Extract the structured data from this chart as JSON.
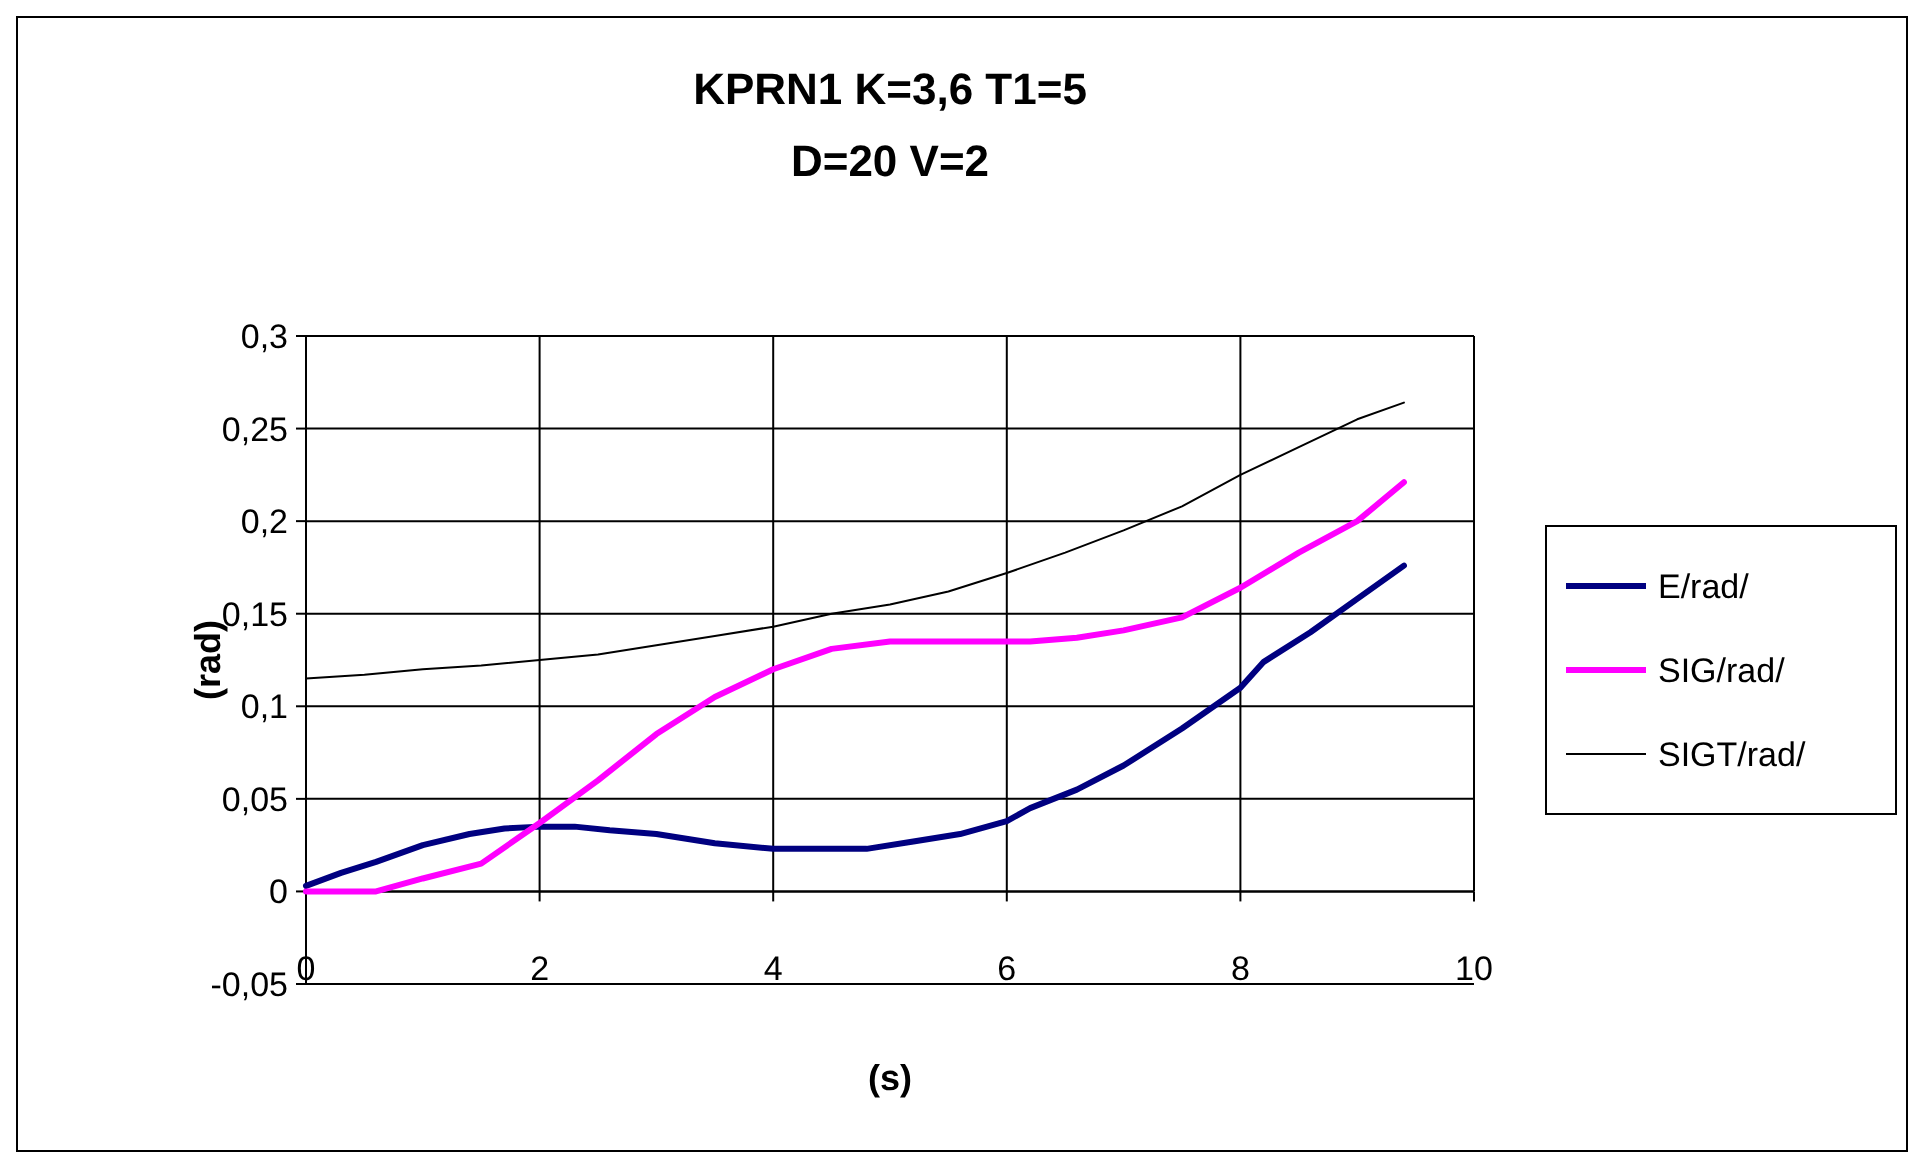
{
  "chart_data": {
    "type": "line",
    "title": "KPRN1 K=3,6 T1=5\nD=20 V=2",
    "xlabel": "(s)",
    "ylabel": "(rad)",
    "xlim": [
      0,
      10
    ],
    "xticks": [
      0,
      2,
      4,
      6,
      8,
      10
    ],
    "ylim": [
      -0.05,
      0.3
    ],
    "yticks": [
      {
        "value": -0.05,
        "label": "-0,05"
      },
      {
        "value": 0,
        "label": "0"
      },
      {
        "value": 0.05,
        "label": "0,05"
      },
      {
        "value": 0.1,
        "label": "0,1"
      },
      {
        "value": 0.15,
        "label": "0,15"
      },
      {
        "value": 0.2,
        "label": "0,2"
      },
      {
        "value": 0.25,
        "label": "0,25"
      },
      {
        "value": 0.3,
        "label": "0,3"
      }
    ],
    "grid": true,
    "legend": "right",
    "marker": "none",
    "line_style": "solid",
    "series": [
      {
        "name": "E/rad/",
        "color": "#000080",
        "x": [
          0,
          0.3,
          0.6,
          1,
          1.4,
          1.7,
          2,
          2.3,
          2.6,
          3,
          3.5,
          4,
          4.5,
          4.8,
          5.2,
          5.6,
          6,
          6.2,
          6.6,
          7,
          7.5,
          8,
          8.2,
          8.6,
          9,
          9.4
        ],
        "values": [
          0.003,
          0.01,
          0.016,
          0.025,
          0.031,
          0.034,
          0.035,
          0.035,
          0.033,
          0.031,
          0.026,
          0.023,
          0.023,
          0.023,
          0.027,
          0.031,
          0.038,
          0.045,
          0.055,
          0.068,
          0.088,
          0.11,
          0.124,
          0.14,
          0.158,
          0.176
        ]
      },
      {
        "name": "SIG/rad/",
        "color": "#ff00ff",
        "x": [
          0,
          0.3,
          0.6,
          1,
          1.5,
          2,
          2.5,
          3,
          3.5,
          4,
          4.5,
          5,
          5.5,
          6.2,
          6.6,
          7,
          7.5,
          8,
          8.5,
          9,
          9.4
        ],
        "values": [
          0,
          0,
          0,
          0.007,
          0.015,
          0.037,
          0.06,
          0.085,
          0.105,
          0.12,
          0.131,
          0.135,
          0.135,
          0.135,
          0.137,
          0.141,
          0.148,
          0.164,
          0.183,
          0.2,
          0.221
        ]
      },
      {
        "name": "SIGT/rad/",
        "color": "#000000",
        "x": [
          0,
          0.5,
          1,
          1.5,
          2,
          2.5,
          3,
          3.5,
          4,
          4.5,
          5,
          5.5,
          6,
          6.5,
          7,
          7.5,
          8,
          8.5,
          9,
          9.4
        ],
        "values": [
          0.115,
          0.117,
          0.12,
          0.122,
          0.125,
          0.128,
          0.133,
          0.138,
          0.143,
          0.15,
          0.155,
          0.162,
          0.172,
          0.183,
          0.195,
          0.208,
          0.225,
          0.24,
          0.255,
          0.264
        ]
      }
    ]
  }
}
